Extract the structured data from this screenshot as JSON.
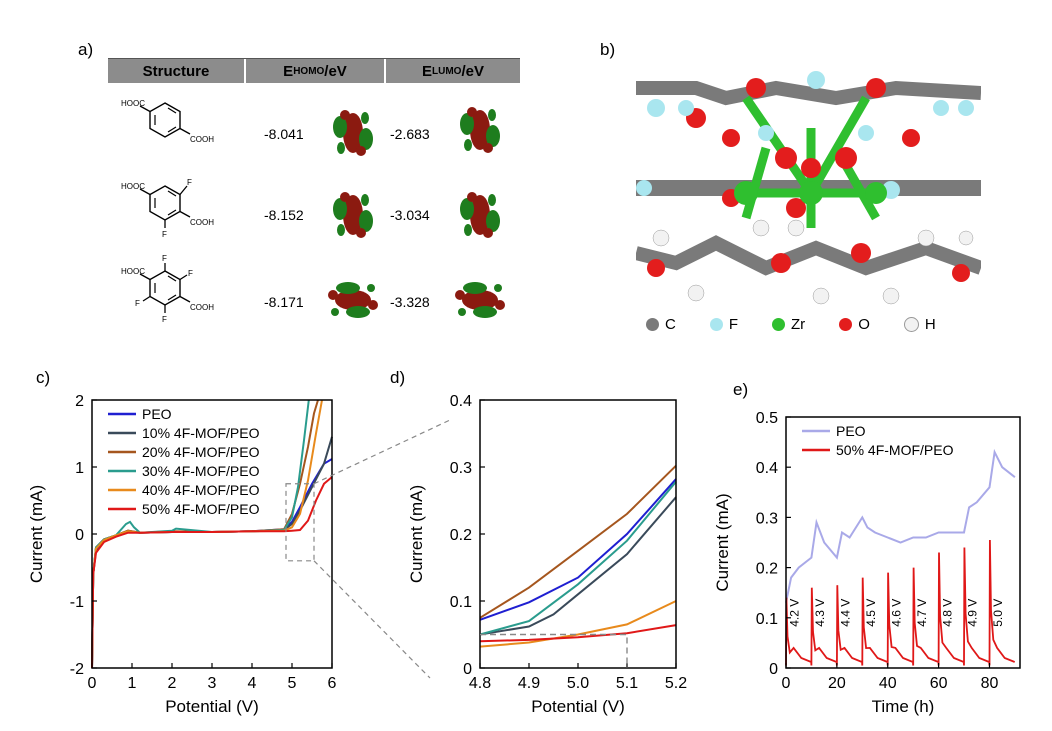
{
  "panel_labels": {
    "a": "a)",
    "b": "b)",
    "c": "c)",
    "d": "d)",
    "e": "e)"
  },
  "table": {
    "headers": {
      "structure": "Structure",
      "ehomo_main": "E",
      "ehomo_sub": "HOMO",
      "ehomo_unit": "/eV",
      "elumo_main": "E",
      "elumo_sub": "LUMO",
      "elumo_unit": "/eV"
    },
    "rows": [
      {
        "labels": {
          "tl": "HOOC",
          "br": "COOH"
        },
        "homo": "-8.041",
        "lumo": "-2.683"
      },
      {
        "labels": {
          "tl": "HOOC",
          "br": "COOH",
          "f1": "F",
          "f2": "F"
        },
        "homo": "-8.152",
        "lumo": "-3.034"
      },
      {
        "labels": {
          "tl": "HOOC",
          "br": "COOH",
          "f1": "F",
          "f2": "F",
          "f3": "F",
          "f4": "F"
        },
        "homo": "-8.171",
        "lumo": "-3.328"
      }
    ]
  },
  "atom_legend": [
    {
      "symbol": "C",
      "color": "#7a7a7a"
    },
    {
      "symbol": "F",
      "color": "#a9e6ef"
    },
    {
      "symbol": "Zr",
      "color": "#2fbf2f"
    },
    {
      "symbol": "O",
      "color": "#e31d1d"
    },
    {
      "symbol": "H",
      "color": "#f2f2f2"
    }
  ],
  "chart_data": [
    {
      "id": "c",
      "type": "line",
      "xlabel": "Potential (V)",
      "ylabel": "Current (mA)",
      "xlim": [
        0,
        6
      ],
      "ylim": [
        -2,
        2
      ],
      "xticks": [
        "0",
        "1",
        "2",
        "3",
        "4",
        "5",
        "6"
      ],
      "yticks": [
        "-2",
        "-1",
        "0",
        "1",
        "2"
      ],
      "legend_position": "top-left",
      "series": [
        {
          "name": "PEO",
          "color": "#1f1fd1",
          "x": [
            0,
            0.03,
            0.1,
            0.3,
            0.6,
            0.9,
            1.2,
            2,
            3,
            4,
            4.8,
            5.0,
            5.2,
            5.5,
            5.8,
            6.0
          ],
          "y": [
            -2,
            -0.6,
            -0.25,
            -0.1,
            -0.03,
            0.03,
            0.02,
            0.03,
            0.03,
            0.04,
            0.07,
            0.18,
            0.4,
            0.75,
            1.05,
            1.12
          ]
        },
        {
          "name": "10% 4F-MOF/PEO",
          "color": "#3a4a5a",
          "x": [
            0,
            0.03,
            0.1,
            0.3,
            0.6,
            0.9,
            1.2,
            2,
            3,
            4,
            4.8,
            5.0,
            5.2,
            5.5,
            5.8,
            6.0
          ],
          "y": [
            -2,
            -0.6,
            -0.2,
            -0.08,
            -0.02,
            0.05,
            0.02,
            0.03,
            0.03,
            0.04,
            0.06,
            0.15,
            0.35,
            0.7,
            1.05,
            1.45
          ]
        },
        {
          "name": "20% 4F-MOF/PEO",
          "color": "#a5561e",
          "x": [
            0,
            0.03,
            0.1,
            0.3,
            0.6,
            0.9,
            1.2,
            2,
            3,
            4,
            4.8,
            5.0,
            5.2,
            5.4,
            5.55,
            5.65
          ],
          "y": [
            -2,
            -0.6,
            -0.2,
            -0.08,
            -0.02,
            0.05,
            0.02,
            0.04,
            0.03,
            0.04,
            0.07,
            0.3,
            0.75,
            1.3,
            1.8,
            2.0
          ]
        },
        {
          "name": "30% 4F-MOF/PEO",
          "color": "#2a9c8e",
          "x": [
            0,
            0.03,
            0.1,
            0.3,
            0.6,
            0.85,
            0.95,
            1.05,
            1.2,
            2,
            2.1,
            3,
            4,
            4.8,
            5.0,
            5.15,
            5.3,
            5.42
          ],
          "y": [
            -2,
            -0.6,
            -0.2,
            -0.08,
            -0.02,
            0.15,
            0.18,
            0.1,
            0.02,
            0.05,
            0.08,
            0.03,
            0.04,
            0.06,
            0.25,
            0.7,
            1.4,
            2.0
          ]
        },
        {
          "name": "40% 4F-MOF/PEO",
          "color": "#e88a1c",
          "x": [
            0,
            0.03,
            0.1,
            0.3,
            0.6,
            0.9,
            1.2,
            2,
            3,
            4,
            4.8,
            5.0,
            5.2,
            5.4,
            5.6,
            5.75
          ],
          "y": [
            -2,
            -0.6,
            -0.22,
            -0.09,
            -0.02,
            0.04,
            0.02,
            0.03,
            0.03,
            0.04,
            0.05,
            0.1,
            0.3,
            0.8,
            1.5,
            2.0
          ]
        },
        {
          "name": "50% 4F-MOF/PEO",
          "color": "#e01818",
          "x": [
            0,
            0.03,
            0.1,
            0.3,
            0.6,
            0.9,
            1.2,
            2,
            3,
            4,
            4.8,
            5.0,
            5.2,
            5.4,
            5.6,
            5.8,
            6.0
          ],
          "y": [
            -2,
            -0.6,
            -0.28,
            -0.12,
            -0.04,
            0.02,
            0.02,
            0.03,
            0.03,
            0.04,
            0.04,
            0.05,
            0.06,
            0.2,
            0.5,
            0.75,
            0.85
          ]
        }
      ],
      "inset_box": {
        "x": [
          4.85,
          5.55
        ],
        "y": [
          -0.4,
          0.75
        ]
      }
    },
    {
      "id": "d",
      "type": "line",
      "xlabel": "Potential (V)",
      "ylabel": "Current (mA)",
      "xlim": [
        4.8,
        5.2
      ],
      "ylim": [
        0,
        0.4
      ],
      "xticks": [
        "4.8",
        "4.9",
        "5.0",
        "5.1",
        "5.2"
      ],
      "yticks": [
        "0",
        "0.1",
        "0.2",
        "0.3",
        "0.4"
      ],
      "series": [
        {
          "name": "PEO",
          "color": "#1f1fd1",
          "x": [
            4.8,
            4.9,
            5.0,
            5.1,
            5.2
          ],
          "y": [
            0.072,
            0.098,
            0.135,
            0.2,
            0.282
          ]
        },
        {
          "name": "10% 4F-MOF/PEO",
          "color": "#3a4a5a",
          "x": [
            4.8,
            4.9,
            4.95,
            5.0,
            5.1,
            5.2
          ],
          "y": [
            0.05,
            0.062,
            0.08,
            0.11,
            0.17,
            0.255
          ]
        },
        {
          "name": "20% 4F-MOF/PEO",
          "color": "#a5561e",
          "x": [
            4.8,
            4.9,
            5.0,
            5.1,
            5.2
          ],
          "y": [
            0.075,
            0.12,
            0.175,
            0.23,
            0.302
          ]
        },
        {
          "name": "30% 4F-MOF/PEO",
          "color": "#2a9c8e",
          "x": [
            4.8,
            4.9,
            5.0,
            5.1,
            5.2
          ],
          "y": [
            0.05,
            0.07,
            0.125,
            0.19,
            0.278
          ]
        },
        {
          "name": "40% 4F-MOF/PEO",
          "color": "#e88a1c",
          "x": [
            4.8,
            4.85,
            4.9,
            5.0,
            5.1,
            5.2
          ],
          "y": [
            0.032,
            0.035,
            0.038,
            0.05,
            0.065,
            0.1
          ]
        },
        {
          "name": "50% 4F-MOF/PEO",
          "color": "#e01818",
          "x": [
            4.8,
            4.9,
            5.0,
            5.1,
            5.2
          ],
          "y": [
            0.04,
            0.042,
            0.046,
            0.052,
            0.064
          ]
        }
      ],
      "reference_line": {
        "y": 0.05,
        "x_end": 5.1
      }
    },
    {
      "id": "e",
      "type": "line",
      "xlabel": "Time (h)",
      "ylabel": "Current (mA)",
      "xlim": [
        0,
        92
      ],
      "ylim": [
        0,
        0.5
      ],
      "xticks": [
        "0",
        "20",
        "40",
        "60",
        "80"
      ],
      "yticks": [
        "0",
        "0.1",
        "0.2",
        "0.3",
        "0.4",
        "0.5"
      ],
      "legend_position": "top-left",
      "series": [
        {
          "name": "PEO",
          "color": "#a9a9e8",
          "x": [
            0,
            2,
            5,
            10,
            12,
            15,
            20,
            22,
            25,
            30,
            32,
            35,
            40,
            45,
            50,
            55,
            60,
            65,
            70,
            72,
            75,
            80,
            82,
            85,
            90
          ],
          "y": [
            0.13,
            0.18,
            0.2,
            0.22,
            0.29,
            0.25,
            0.22,
            0.27,
            0.26,
            0.3,
            0.28,
            0.27,
            0.26,
            0.25,
            0.26,
            0.26,
            0.27,
            0.27,
            0.27,
            0.32,
            0.33,
            0.36,
            0.43,
            0.4,
            0.38
          ]
        },
        {
          "name": "50% 4F-MOF/PEO",
          "color": "#e01818",
          "steps": [
            0,
            10,
            20,
            30,
            40,
            50,
            60,
            70,
            80
          ],
          "peaks": [
            0.14,
            0.16,
            0.165,
            0.18,
            0.19,
            0.2,
            0.23,
            0.24,
            0.255
          ]
        }
      ],
      "annotations": [
        "4.2 V",
        "4.3 V",
        "4.4 V",
        "4.5 V",
        "4.6 V",
        "4.7 V",
        "4.8 V",
        "4.9 V",
        "5.0 V"
      ]
    }
  ]
}
